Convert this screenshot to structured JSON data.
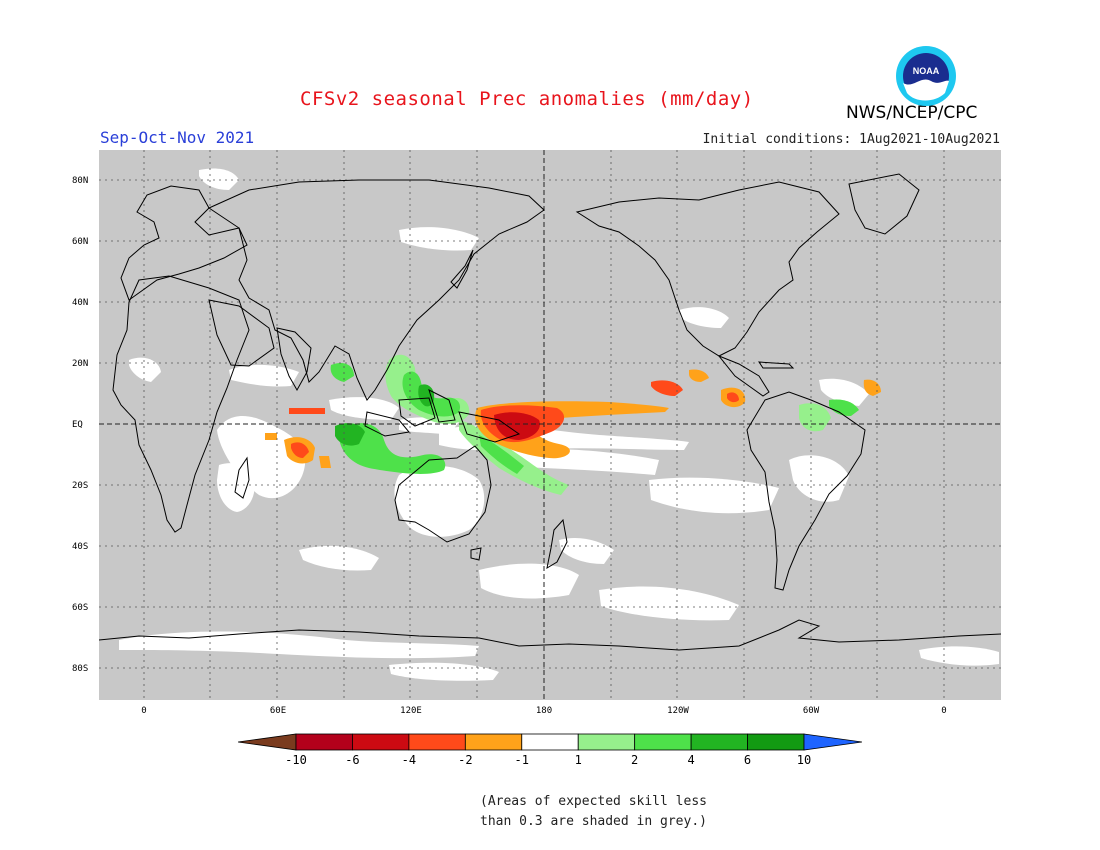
{
  "header": {
    "title": "CFSv2 seasonal Prec anomalies (mm/day)",
    "agency": "NWS/NCEP/CPC",
    "season": "Sep-Oct-Nov 2021",
    "initial_conditions": "Initial conditions: 1Aug2021-10Aug2021",
    "logo_text": "NOAA"
  },
  "map": {
    "projection": "cylindrical equidistant",
    "background_color": "#c8c8c8",
    "land_outline_color": "#000000",
    "gridlines": "dotted",
    "lat_labels": [
      "80N",
      "60N",
      "40N",
      "20N",
      "EQ",
      "20S",
      "40S",
      "60S",
      "80S"
    ],
    "lon_labels": [
      "0",
      "60E",
      "120E",
      "180",
      "120W",
      "60W",
      "0"
    ],
    "highlighted_lines": [
      "EQ",
      "180"
    ]
  },
  "legend": {
    "ticks": [
      "-10",
      "-6",
      "-4",
      "-2",
      "-1",
      "1",
      "2",
      "4",
      "6",
      "10"
    ],
    "colors": [
      "#7a3b1e",
      "#b3001b",
      "#cc0a12",
      "#ff4a1a",
      "#ffa21a",
      "#ffffff",
      "#96f08c",
      "#4ee14a",
      "#22b422",
      "#129a12",
      "#1e64ff"
    ]
  },
  "note": {
    "line1": "(Areas of expected skill less",
    "line2": "than 0.3 are shaded in grey.)"
  }
}
